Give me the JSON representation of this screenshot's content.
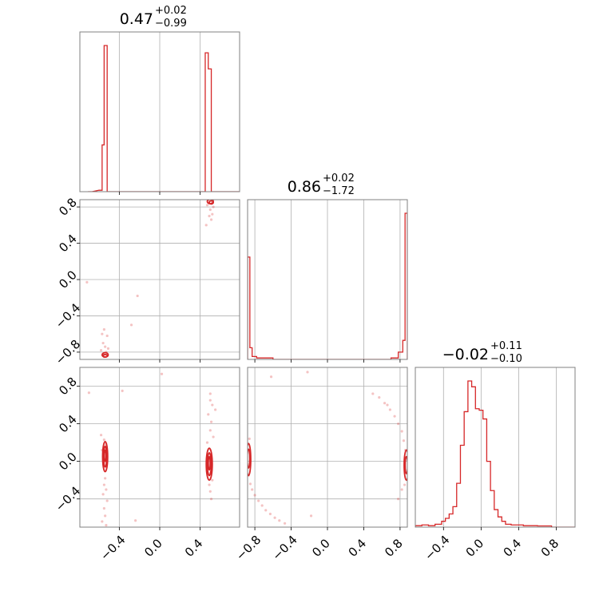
{
  "chart_data": {
    "type": "corner",
    "color": "#d62728",
    "params": [
      {
        "title_value": "0.47",
        "title_plus": "+0.02",
        "title_minus": "−0.99",
        "range": [
          -0.79,
          0.79
        ]
      },
      {
        "title_value": "0.86",
        "title_plus": "+0.02",
        "title_minus": "−1.72",
        "range": [
          -0.88,
          0.88
        ]
      },
      {
        "title_value": "−0.02",
        "title_plus": "+0.11",
        "title_minus": "−0.10",
        "range": [
          -0.7,
          1.0
        ]
      }
    ],
    "ticks": {
      "p0": [
        {
          "v": -0.4,
          "label": "−0.4"
        },
        {
          "v": 0.0,
          "label": "0.0"
        },
        {
          "v": 0.4,
          "label": "0.4"
        }
      ],
      "p1": [
        {
          "v": -0.8,
          "label": "−0.8"
        },
        {
          "v": -0.4,
          "label": "−0.4"
        },
        {
          "v": 0.0,
          "label": "0.0"
        },
        {
          "v": 0.4,
          "label": "0.4"
        },
        {
          "v": 0.8,
          "label": "0.8"
        }
      ],
      "p2": [
        {
          "v": -0.4,
          "label": "−0.4"
        },
        {
          "v": 0.0,
          "label": "0.0"
        },
        {
          "v": 0.4,
          "label": "0.4"
        },
        {
          "v": 0.8,
          "label": "0.8"
        }
      ]
    },
    "hist_p0": [
      {
        "x0": -0.71,
        "x1": -0.67,
        "h": 0.0
      },
      {
        "x0": -0.6,
        "x1": -0.57,
        "h": 0.01
      },
      {
        "x0": -0.57,
        "x1": -0.55,
        "h": 0.32
      },
      {
        "x0": -0.55,
        "x1": -0.52,
        "h": 1.0
      },
      {
        "x0": -0.52,
        "x1": 0.45,
        "h": 0.0
      },
      {
        "x0": 0.45,
        "x1": 0.48,
        "h": 0.95
      },
      {
        "x0": 0.48,
        "x1": 0.51,
        "h": 0.84
      },
      {
        "x0": 0.51,
        "x1": 0.79,
        "h": 0.0
      }
    ],
    "hist_p1": [
      {
        "x0": -0.88,
        "x1": -0.855,
        "h": 0.7
      },
      {
        "x0": -0.855,
        "x1": -0.83,
        "h": 0.08
      },
      {
        "x0": -0.83,
        "x1": -0.78,
        "h": 0.02
      },
      {
        "x0": -0.78,
        "x1": -0.6,
        "h": 0.01
      },
      {
        "x0": -0.6,
        "x1": 0.7,
        "h": 0.0
      },
      {
        "x0": 0.7,
        "x1": 0.78,
        "h": 0.01
      },
      {
        "x0": 0.78,
        "x1": 0.83,
        "h": 0.05
      },
      {
        "x0": 0.83,
        "x1": 0.855,
        "h": 0.13
      },
      {
        "x0": 0.855,
        "x1": 0.88,
        "h": 1.0
      }
    ],
    "hist_p2": [
      {
        "x0": -0.7,
        "x1": -0.63,
        "h": 0.01
      },
      {
        "x0": -0.63,
        "x1": -0.56,
        "h": 0.015
      },
      {
        "x0": -0.56,
        "x1": -0.49,
        "h": 0.01
      },
      {
        "x0": -0.49,
        "x1": -0.42,
        "h": 0.02
      },
      {
        "x0": -0.42,
        "x1": -0.38,
        "h": 0.04
      },
      {
        "x0": -0.38,
        "x1": -0.34,
        "h": 0.06
      },
      {
        "x0": -0.34,
        "x1": -0.3,
        "h": 0.09
      },
      {
        "x0": -0.3,
        "x1": -0.26,
        "h": 0.14
      },
      {
        "x0": -0.26,
        "x1": -0.22,
        "h": 0.3
      },
      {
        "x0": -0.22,
        "x1": -0.18,
        "h": 0.56
      },
      {
        "x0": -0.18,
        "x1": -0.14,
        "h": 0.79
      },
      {
        "x0": -0.14,
        "x1": -0.1,
        "h": 1.0
      },
      {
        "x0": -0.1,
        "x1": -0.06,
        "h": 0.96
      },
      {
        "x0": -0.06,
        "x1": -0.02,
        "h": 0.81
      },
      {
        "x0": -0.02,
        "x1": 0.02,
        "h": 0.8
      },
      {
        "x0": 0.02,
        "x1": 0.06,
        "h": 0.74
      },
      {
        "x0": 0.06,
        "x1": 0.1,
        "h": 0.45
      },
      {
        "x0": 0.1,
        "x1": 0.14,
        "h": 0.25
      },
      {
        "x0": 0.14,
        "x1": 0.18,
        "h": 0.12
      },
      {
        "x0": 0.18,
        "x1": 0.22,
        "h": 0.07
      },
      {
        "x0": 0.22,
        "x1": 0.26,
        "h": 0.04
      },
      {
        "x0": 0.26,
        "x1": 0.32,
        "h": 0.02
      },
      {
        "x0": 0.32,
        "x1": 0.45,
        "h": 0.015
      },
      {
        "x0": 0.45,
        "x1": 0.6,
        "h": 0.01
      },
      {
        "x0": 0.6,
        "x1": 0.75,
        "h": 0.008
      },
      {
        "x0": 0.75,
        "x1": 1.0,
        "h": 0.0
      }
    ],
    "contours_p1_vs_p0": [
      {
        "cx": 0.5,
        "cy": 0.86,
        "rx": 0.03,
        "ry": 0.025
      },
      {
        "cx": 0.51,
        "cy": 0.85,
        "rx": 0.02,
        "ry": 0.018
      },
      {
        "cx": -0.54,
        "cy": -0.83,
        "rx": 0.03,
        "ry": 0.025
      },
      {
        "cx": -0.54,
        "cy": -0.84,
        "rx": 0.02,
        "ry": 0.015
      }
    ],
    "contours_p2_vs_p0": [
      {
        "cx": -0.54,
        "cy": 0.05,
        "rx": 0.025,
        "ry": 0.16
      },
      {
        "cx": -0.54,
        "cy": 0.05,
        "rx": 0.016,
        "ry": 0.11
      },
      {
        "cx": -0.54,
        "cy": 0.06,
        "rx": 0.009,
        "ry": 0.06
      },
      {
        "cx": 0.49,
        "cy": -0.03,
        "rx": 0.03,
        "ry": 0.17
      },
      {
        "cx": 0.49,
        "cy": -0.03,
        "rx": 0.02,
        "ry": 0.12
      },
      {
        "cx": 0.49,
        "cy": -0.02,
        "rx": 0.01,
        "ry": 0.07
      }
    ],
    "contours_p2_vs_p1": [
      {
        "cx": -0.87,
        "cy": 0.02,
        "rx": 0.025,
        "ry": 0.17
      },
      {
        "cx": -0.87,
        "cy": 0.03,
        "rx": 0.015,
        "ry": 0.1
      },
      {
        "cx": 0.87,
        "cy": -0.04,
        "rx": 0.025,
        "ry": 0.16
      },
      {
        "cx": 0.87,
        "cy": -0.04,
        "rx": 0.015,
        "ry": 0.09
      }
    ],
    "scatter_p1_vs_p0": [
      [
        -0.55,
        -0.55
      ],
      [
        -0.57,
        -0.6
      ],
      [
        -0.52,
        -0.62
      ],
      [
        -0.56,
        -0.7
      ],
      [
        -0.54,
        -0.74
      ],
      [
        -0.58,
        -0.78
      ],
      [
        -0.51,
        -0.76
      ],
      [
        -0.53,
        -0.8
      ],
      [
        -0.56,
        -0.82
      ],
      [
        -0.55,
        -0.85
      ],
      [
        -0.28,
        -0.5
      ],
      [
        -0.72,
        -0.03
      ],
      [
        -0.22,
        -0.18
      ],
      [
        0.47,
        0.82
      ],
      [
        0.5,
        0.77
      ],
      [
        0.52,
        0.72
      ],
      [
        0.49,
        0.7
      ],
      [
        0.51,
        0.66
      ],
      [
        0.46,
        0.6
      ],
      [
        0.53,
        0.8
      ],
      [
        0.48,
        0.88
      ],
      [
        0.52,
        0.86
      ]
    ],
    "scatter_p2_vs_p0": [
      [
        -0.55,
        0.23
      ],
      [
        -0.53,
        0.18
      ],
      [
        -0.57,
        0.12
      ],
      [
        -0.54,
        -0.18
      ],
      [
        -0.55,
        -0.25
      ],
      [
        -0.53,
        -0.3
      ],
      [
        -0.56,
        -0.35
      ],
      [
        -0.52,
        -0.42
      ],
      [
        -0.55,
        -0.5
      ],
      [
        -0.54,
        -0.58
      ],
      [
        -0.57,
        -0.64
      ],
      [
        -0.53,
        -0.68
      ],
      [
        -0.58,
        0.28
      ],
      [
        -0.7,
        0.73
      ],
      [
        -0.37,
        0.75
      ],
      [
        -0.24,
        -0.63
      ],
      [
        0.02,
        0.93
      ],
      [
        0.5,
        0.72
      ],
      [
        0.52,
        0.6
      ],
      [
        0.48,
        0.5
      ],
      [
        0.51,
        0.42
      ],
      [
        0.5,
        0.33
      ],
      [
        0.53,
        0.26
      ],
      [
        0.49,
        -0.25
      ],
      [
        0.5,
        -0.32
      ],
      [
        0.51,
        -0.4
      ],
      [
        0.47,
        0.2
      ],
      [
        0.52,
        -0.2
      ],
      [
        0.55,
        0.55
      ],
      [
        0.5,
        0.65
      ]
    ],
    "scatter_p2_vs_p1": [
      [
        -0.86,
        0.24
      ],
      [
        -0.85,
        -0.24
      ],
      [
        -0.83,
        -0.3
      ],
      [
        -0.8,
        -0.36
      ],
      [
        -0.76,
        -0.42
      ],
      [
        -0.72,
        -0.47
      ],
      [
        -0.68,
        -0.52
      ],
      [
        -0.63,
        -0.56
      ],
      [
        -0.58,
        -0.6
      ],
      [
        -0.53,
        -0.63
      ],
      [
        -0.47,
        -0.66
      ],
      [
        -0.18,
        -0.58
      ],
      [
        -0.87,
        -0.15
      ],
      [
        -0.62,
        0.9
      ],
      [
        -0.22,
        0.95
      ],
      [
        0.5,
        0.72
      ],
      [
        0.57,
        0.68
      ],
      [
        0.63,
        0.62
      ],
      [
        0.69,
        0.55
      ],
      [
        0.74,
        0.48
      ],
      [
        0.78,
        0.4
      ],
      [
        0.82,
        0.32
      ],
      [
        0.84,
        0.22
      ],
      [
        0.85,
        -0.25
      ],
      [
        0.82,
        -0.3
      ],
      [
        0.78,
        -0.4
      ],
      [
        0.86,
        0.12
      ],
      [
        0.66,
        0.6
      ]
    ]
  }
}
